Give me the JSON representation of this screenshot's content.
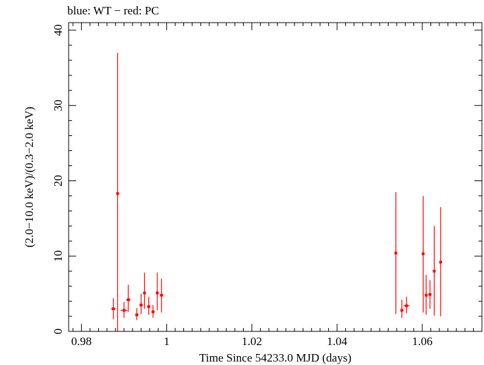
{
  "chart_data": {
    "type": "scatter",
    "title": "blue: WT − red: PC",
    "xlabel": "Time Since 54233.0 MJD (days)",
    "ylabel": "(2.0−10.0 keV)/(0.3−2.0 keV)",
    "xlim": [
      0.977,
      1.074
    ],
    "ylim": [
      0,
      41
    ],
    "xticks": [
      0.98,
      1,
      1.02,
      1.04,
      1.06
    ],
    "xtick_labels": [
      "0.98",
      "1",
      "1.02",
      "1.04",
      "1.06"
    ],
    "yticks": [
      0,
      10,
      20,
      30,
      40
    ],
    "ytick_labels": [
      "0",
      "10",
      "20",
      "30",
      "40"
    ],
    "grid": false,
    "series": [
      {
        "color": "#ff0000",
        "points": [
          {
            "x": 0.9875,
            "y": 3.0,
            "ylo": 1.6,
            "yhi": 4.4,
            "xerr": 0.0006
          },
          {
            "x": 0.9885,
            "y": 18.3,
            "ylo": 0.0,
            "yhi": 37.0,
            "xerr": 0.0003
          },
          {
            "x": 0.99,
            "y": 2.8,
            "ylo": 1.8,
            "yhi": 3.9,
            "xerr": 0.0008
          },
          {
            "x": 0.991,
            "y": 4.2,
            "ylo": 2.6,
            "yhi": 6.2,
            "xerr": 0.0005
          },
          {
            "x": 0.993,
            "y": 2.2,
            "ylo": 1.5,
            "yhi": 3.1,
            "xerr": 0.0004
          },
          {
            "x": 0.994,
            "y": 3.5,
            "ylo": 2.3,
            "yhi": 5.0,
            "xerr": 0.0004
          },
          {
            "x": 0.9948,
            "y": 5.1,
            "ylo": 3.0,
            "yhi": 7.8,
            "xerr": 0.0003
          },
          {
            "x": 0.9958,
            "y": 3.3,
            "ylo": 2.2,
            "yhi": 4.6,
            "xerr": 0.0004
          },
          {
            "x": 0.9968,
            "y": 2.6,
            "ylo": 1.8,
            "yhi": 3.5,
            "xerr": 0.0004
          },
          {
            "x": 0.9978,
            "y": 5.1,
            "ylo": 2.8,
            "yhi": 7.8,
            "xerr": 0.0003
          },
          {
            "x": 0.9988,
            "y": 4.8,
            "ylo": 2.5,
            "yhi": 7.0,
            "xerr": 0.0004
          },
          {
            "x": 1.0538,
            "y": 10.4,
            "ylo": 2.3,
            "yhi": 18.5,
            "xerr": 0.0003
          },
          {
            "x": 1.0552,
            "y": 2.8,
            "ylo": 1.8,
            "yhi": 4.2,
            "xerr": 0.0003
          },
          {
            "x": 1.0563,
            "y": 3.4,
            "ylo": 2.4,
            "yhi": 4.6,
            "xerr": 0.0007
          },
          {
            "x": 1.0602,
            "y": 10.3,
            "ylo": 2.5,
            "yhi": 18.0,
            "xerr": 0.0003
          },
          {
            "x": 1.0609,
            "y": 4.8,
            "ylo": 2.2,
            "yhi": 7.5,
            "xerr": 0.0003
          },
          {
            "x": 1.0618,
            "y": 4.9,
            "ylo": 3.0,
            "yhi": 6.8,
            "xerr": 0.0004
          },
          {
            "x": 1.0628,
            "y": 8.0,
            "ylo": 2.1,
            "yhi": 14.0,
            "xerr": 0.0003
          },
          {
            "x": 1.0643,
            "y": 9.2,
            "ylo": 2.0,
            "yhi": 16.5,
            "xerr": 0.0003
          }
        ]
      }
    ]
  }
}
